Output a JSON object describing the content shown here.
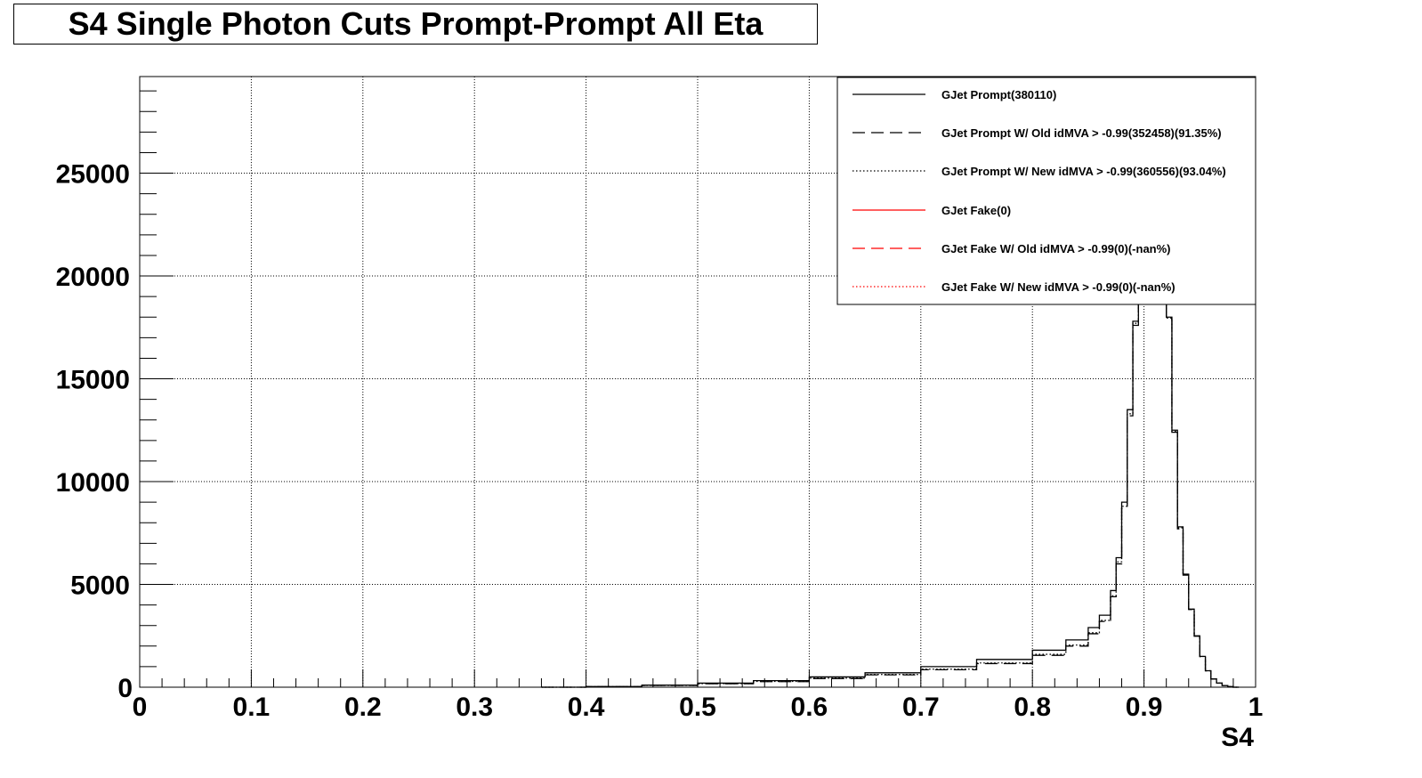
{
  "chart_data": {
    "type": "line",
    "title": "S4 Single Photon Cuts Prompt-Prompt All Eta",
    "xlabel": "S4",
    "ylabel": "",
    "xlim": [
      0,
      1
    ],
    "ylim": [
      0,
      29700
    ],
    "xticks": [
      "0",
      "0.1",
      "0.2",
      "0.3",
      "0.4",
      "0.5",
      "0.6",
      "0.7",
      "0.8",
      "0.9",
      "1"
    ],
    "yticks": [
      "0",
      "5000",
      "10000",
      "15000",
      "20000",
      "25000"
    ],
    "grid": true,
    "legend_position": "top-right",
    "series": [
      {
        "name": "GJet Prompt(380110)",
        "color": "#000000",
        "dash": "solid",
        "x": [
          0.36,
          0.4,
          0.45,
          0.5,
          0.55,
          0.6,
          0.65,
          0.7,
          0.75,
          0.8,
          0.83,
          0.85,
          0.86,
          0.87,
          0.875,
          0.88,
          0.885,
          0.89,
          0.895,
          0.9,
          0.905,
          0.91,
          0.915,
          0.92,
          0.925,
          0.93,
          0.935,
          0.94,
          0.945,
          0.95,
          0.955,
          0.96,
          0.965,
          0.97,
          0.975,
          0.98
        ],
        "values": [
          0,
          30,
          100,
          200,
          320,
          500,
          700,
          1000,
          1350,
          1800,
          2300,
          2900,
          3500,
          4700,
          6300,
          9000,
          13500,
          17800,
          20000,
          20000,
          19500,
          19500,
          19500,
          18000,
          12500,
          7800,
          5500,
          3800,
          2500,
          1500,
          800,
          400,
          200,
          80,
          30,
          0
        ]
      },
      {
        "name": "GJet Prompt W/ Old idMVA > -0.99(352458)(91.35%)",
        "color": "#000000",
        "dash": "long-dash",
        "x": [
          0.36,
          0.4,
          0.45,
          0.5,
          0.55,
          0.6,
          0.65,
          0.7,
          0.75,
          0.8,
          0.83,
          0.85,
          0.86,
          0.87,
          0.875,
          0.88,
          0.885,
          0.89,
          0.895,
          0.9,
          0.905,
          0.91,
          0.915,
          0.92,
          0.925,
          0.93,
          0.935,
          0.94,
          0.945,
          0.95,
          0.955,
          0.96,
          0.965,
          0.97,
          0.975,
          0.98
        ],
        "values": [
          0,
          25,
          85,
          170,
          270,
          420,
          600,
          850,
          1150,
          1550,
          2000,
          2600,
          3200,
          4400,
          6000,
          8700,
          13200,
          17600,
          20000,
          20000,
          19500,
          19500,
          19500,
          17900,
          12400,
          7700,
          5450,
          3780,
          2480,
          1490,
          795,
          398,
          199,
          80,
          30,
          0
        ]
      },
      {
        "name": "GJet Prompt W/ New idMVA > -0.99(360556)(93.04%)",
        "color": "#000000",
        "dash": "dotted",
        "x": [
          0.36,
          0.4,
          0.45,
          0.5,
          0.55,
          0.6,
          0.65,
          0.7,
          0.75,
          0.8,
          0.83,
          0.85,
          0.86,
          0.87,
          0.875,
          0.88,
          0.885,
          0.89,
          0.895,
          0.9,
          0.905,
          0.91,
          0.915,
          0.92,
          0.925,
          0.93,
          0.935,
          0.94,
          0.945,
          0.95,
          0.955,
          0.96,
          0.965,
          0.97,
          0.975,
          0.98
        ],
        "values": [
          0,
          26,
          90,
          175,
          280,
          440,
          620,
          880,
          1180,
          1600,
          2050,
          2650,
          3250,
          4450,
          6100,
          8800,
          13300,
          17700,
          20000,
          20000,
          19500,
          19500,
          19500,
          17950,
          12450,
          7750,
          5470,
          3790,
          2490,
          1495,
          798,
          399,
          200,
          80,
          30,
          0
        ]
      },
      {
        "name": "GJet Fake(0)",
        "color": "#ff0000",
        "dash": "solid",
        "x": [],
        "values": []
      },
      {
        "name": "GJet Fake W/ Old idMVA > -0.99(0)(-nan%)",
        "color": "#ff0000",
        "dash": "long-dash",
        "x": [],
        "values": []
      },
      {
        "name": "GJet Fake W/ New idMVA > -0.99(0)(-nan%)",
        "color": "#ff0000",
        "dash": "dotted",
        "x": [],
        "values": []
      }
    ]
  }
}
